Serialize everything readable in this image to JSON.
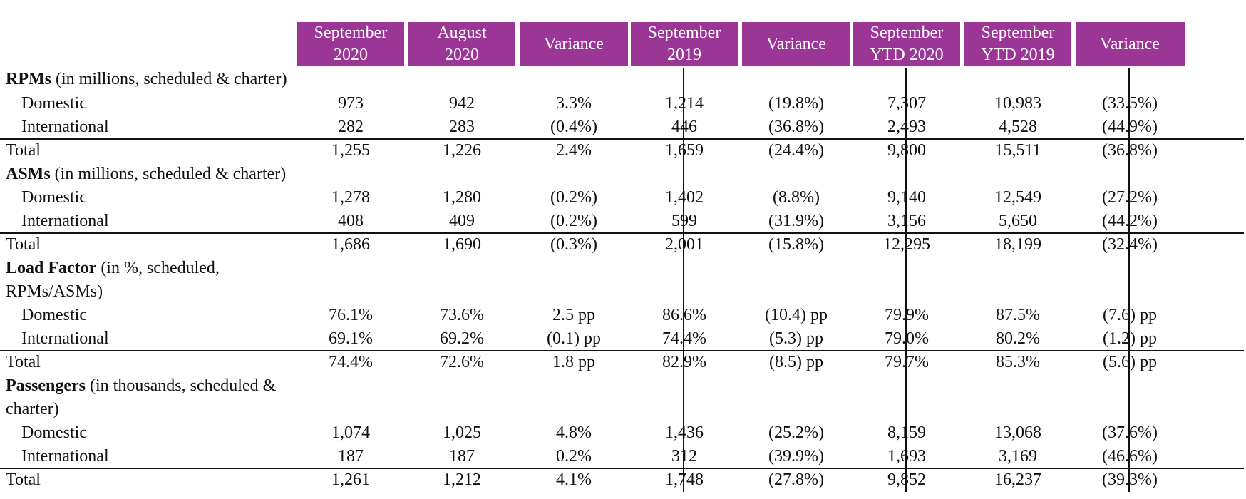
{
  "headers": [
    {
      "line1": "September",
      "line2": "2020"
    },
    {
      "line1": "August",
      "line2": "2020"
    },
    {
      "line1": "Variance",
      "line2": ""
    },
    {
      "line1": "September",
      "line2": "2019"
    },
    {
      "line1": "Variance",
      "line2": ""
    },
    {
      "line1": "September",
      "line2": "YTD 2020"
    },
    {
      "line1": "September",
      "line2": "YTD 2019"
    },
    {
      "line1": "Variance",
      "line2": ""
    }
  ],
  "sections": [
    {
      "title": "RPMs",
      "subtitle": " (in millions, scheduled & charter)",
      "subtitle2": "",
      "rows": [
        {
          "label": "Domestic",
          "values": [
            "973",
            "942",
            "3.3%",
            "1,214",
            "(19.8%)",
            "7,307",
            "10,983",
            "(33.5%)"
          ]
        },
        {
          "label": "International",
          "values": [
            "282",
            "283",
            "(0.4%)",
            "446",
            "(36.8%)",
            "2,493",
            "4,528",
            "(44.9%)"
          ]
        },
        {
          "label": "Total",
          "values": [
            "1,255",
            "1,226",
            "2.4%",
            "1,659",
            "(24.4%)",
            "9,800",
            "15,511",
            "(36.8%)"
          ]
        }
      ]
    },
    {
      "title": "ASMs",
      "subtitle": " (in millions, scheduled & charter)",
      "subtitle2": "",
      "rows": [
        {
          "label": "Domestic",
          "values": [
            "1,278",
            "1,280",
            "(0.2%)",
            "1,402",
            "(8.8%)",
            "9,140",
            "12,549",
            "(27.2%)"
          ]
        },
        {
          "label": "International",
          "values": [
            "408",
            "409",
            "(0.2%)",
            "599",
            "(31.9%)",
            "3,156",
            "5,650",
            "(44.2%)"
          ]
        },
        {
          "label": "Total",
          "values": [
            "1,686",
            "1,690",
            "(0.3%)",
            "2,001",
            "(15.8%)",
            "12,295",
            "18,199",
            "(32.4%)"
          ]
        }
      ]
    },
    {
      "title": "Load Factor",
      "subtitle": " (in %, scheduled,",
      "subtitle2": "RPMs/ASMs)",
      "rows": [
        {
          "label": "Domestic",
          "values": [
            "76.1%",
            "73.6%",
            "2.5 pp",
            "86.6%",
            "(10.4) pp",
            "79.9%",
            "87.5%",
            "(7.6) pp"
          ]
        },
        {
          "label": "International",
          "values": [
            "69.1%",
            "69.2%",
            "(0.1) pp",
            "74.4%",
            "(5.3) pp",
            "79.0%",
            "80.2%",
            "(1.2) pp"
          ]
        },
        {
          "label": "Total",
          "values": [
            "74.4%",
            "72.6%",
            "1.8 pp",
            "82.9%",
            "(8.5) pp",
            "79.7%",
            "85.3%",
            "(5.6) pp"
          ]
        }
      ]
    },
    {
      "title": "Passengers",
      "subtitle": " (in thousands, scheduled &",
      "subtitle2": "charter)",
      "rows": [
        {
          "label": "Domestic",
          "values": [
            "1,074",
            "1,025",
            "4.8%",
            "1,436",
            "(25.2%)",
            "8,159",
            "13,068",
            "(37.6%)"
          ]
        },
        {
          "label": "International",
          "values": [
            "187",
            "187",
            "0.2%",
            "312",
            "(39.9%)",
            "1,693",
            "3,169",
            "(46.6%)"
          ]
        },
        {
          "label": "Total",
          "values": [
            "1,261",
            "1,212",
            "4.1%",
            "1,748",
            "(27.8%)",
            "9,852",
            "16,237",
            "(39.3%)"
          ]
        }
      ]
    }
  ]
}
